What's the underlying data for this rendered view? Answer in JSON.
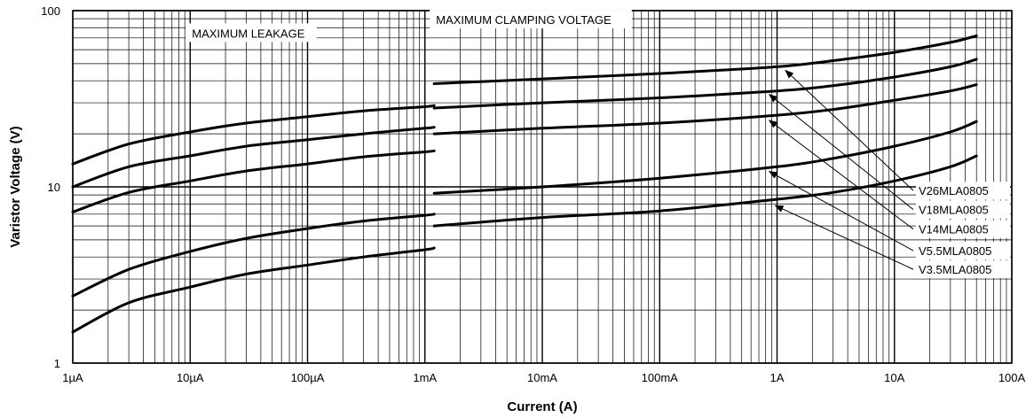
{
  "chart_data": {
    "type": "line",
    "title": "",
    "xlabel": "Current (A)",
    "ylabel": "Varistor Voltage (V)",
    "x_scale": "log",
    "y_scale": "log",
    "xlim": [
      1e-06,
      100
    ],
    "ylim": [
      1,
      100
    ],
    "grid": true,
    "x_ticks": [
      {
        "value": 1e-06,
        "label": "1µA"
      },
      {
        "value": 1e-05,
        "label": "10µA"
      },
      {
        "value": 0.0001,
        "label": "100µA"
      },
      {
        "value": 0.001,
        "label": "1mA"
      },
      {
        "value": 0.01,
        "label": "10mA"
      },
      {
        "value": 0.1,
        "label": "100mA"
      },
      {
        "value": 1,
        "label": "1A"
      },
      {
        "value": 10,
        "label": "10A"
      },
      {
        "value": 100,
        "label": "100A"
      }
    ],
    "y_ticks": [
      {
        "value": 1,
        "label": "1"
      },
      {
        "value": 10,
        "label": "10"
      },
      {
        "value": 100,
        "label": "100"
      }
    ],
    "annotations": [
      {
        "text": "MAXIMUM LEAKAGE",
        "x": 1e-05,
        "y": 72
      },
      {
        "text": "MAXIMUM CLAMPING VOLTAGE",
        "x": 0.0012,
        "y": 86
      }
    ],
    "series": [
      {
        "name": "V26MLA0805",
        "label_y": 9.1,
        "arrow_to": [
          1.1,
          48
        ],
        "leakage": {
          "x": [
            1e-06,
            3e-06,
            1e-05,
            3e-05,
            0.0001,
            0.0003,
            0.001,
            0.0012
          ],
          "y": [
            13.5,
            17.5,
            20.5,
            23,
            25,
            27,
            28.5,
            29
          ]
        },
        "clamping": {
          "x": [
            0.0012,
            0.01,
            0.1,
            1,
            3,
            10,
            30,
            50
          ],
          "y": [
            38.5,
            41,
            44,
            48,
            52,
            58,
            66,
            72
          ]
        }
      },
      {
        "name": "V18MLA0805",
        "label_y": 7.1,
        "arrow_to": [
          0.8,
          35
        ],
        "leakage": {
          "x": [
            1e-06,
            3e-06,
            1e-05,
            3e-05,
            0.0001,
            0.0003,
            0.001,
            0.0012
          ],
          "y": [
            10,
            13,
            15,
            17,
            18.5,
            20,
            21.5,
            21.8
          ]
        },
        "clamping": {
          "x": [
            0.0012,
            0.01,
            0.1,
            1,
            3,
            10,
            30,
            50
          ],
          "y": [
            28,
            30,
            32,
            35,
            37.5,
            42,
            48,
            53
          ]
        }
      },
      {
        "name": "V14MLA0805",
        "label_y": 5.5,
        "arrow_to": [
          0.8,
          25
        ],
        "leakage": {
          "x": [
            1e-06,
            3e-06,
            1e-05,
            3e-05,
            0.0001,
            0.0003,
            0.001,
            0.0012
          ],
          "y": [
            7.2,
            9.3,
            10.8,
            12.3,
            13.5,
            14.8,
            15.8,
            16
          ]
        },
        "clamping": {
          "x": [
            0.0012,
            0.01,
            0.1,
            1,
            3,
            10,
            30,
            50
          ],
          "y": [
            20,
            21.5,
            23,
            25.5,
            27.5,
            31,
            35,
            38
          ]
        }
      },
      {
        "name": "V5.5MLA0805",
        "label_y": 4.15,
        "arrow_to": [
          0.8,
          12.8
        ],
        "leakage": {
          "x": [
            1e-06,
            3e-06,
            1e-05,
            3e-05,
            0.0001,
            0.0003,
            0.001,
            0.0012
          ],
          "y": [
            2.4,
            3.4,
            4.3,
            5.1,
            5.8,
            6.4,
            6.9,
            7
          ]
        },
        "clamping": {
          "x": [
            0.0012,
            0.01,
            0.1,
            1,
            3,
            10,
            30,
            50
          ],
          "y": [
            9.2,
            10,
            11.2,
            13,
            14.5,
            17,
            20.5,
            23.5
          ]
        }
      },
      {
        "name": "V3.5MLA0805",
        "label_y": 3.25,
        "arrow_to": [
          0.9,
          8.2
        ],
        "leakage": {
          "x": [
            1e-06,
            3e-06,
            1e-05,
            3e-05,
            0.0001,
            0.0003,
            0.001,
            0.0012
          ],
          "y": [
            1.5,
            2.2,
            2.7,
            3.2,
            3.6,
            4,
            4.4,
            4.5
          ]
        },
        "clamping": {
          "x": [
            0.0012,
            0.01,
            0.1,
            1,
            3,
            10,
            30,
            50
          ],
          "y": [
            6,
            6.7,
            7.3,
            8.5,
            9.3,
            10.8,
            13,
            15
          ]
        }
      }
    ]
  }
}
